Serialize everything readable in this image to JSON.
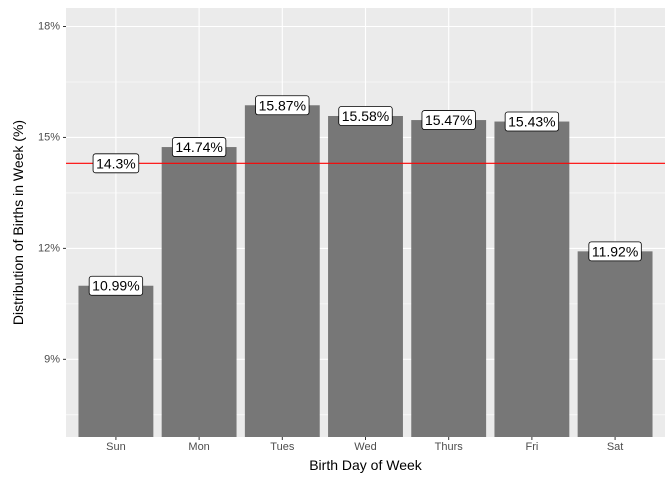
{
  "chart_data": {
    "type": "bar",
    "title": "",
    "xlabel": "Birth Day of Week",
    "ylabel": "Distribution of Births in Week (%)",
    "categories": [
      "Sun",
      "Mon",
      "Tues",
      "Wed",
      "Thurs",
      "Fri",
      "Sat"
    ],
    "values": [
      10.99,
      14.74,
      15.87,
      15.58,
      15.47,
      15.43,
      11.92
    ],
    "data_labels": [
      "10.99%",
      "14.74%",
      "15.87%",
      "15.58%",
      "15.47%",
      "15.43%",
      "11.92%"
    ],
    "ylim": [
      6.9,
      18.5
    ],
    "yticks": [
      9,
      12,
      15,
      18
    ],
    "ytick_labels": [
      "9%",
      "12%",
      "15%",
      "18%"
    ],
    "reference_line": {
      "value": 14.3,
      "label": "14.3%",
      "color": "#ff0000"
    },
    "bar_color": "#777777",
    "panel_background": "#ebebeb",
    "grid": true,
    "legend": "none"
  }
}
